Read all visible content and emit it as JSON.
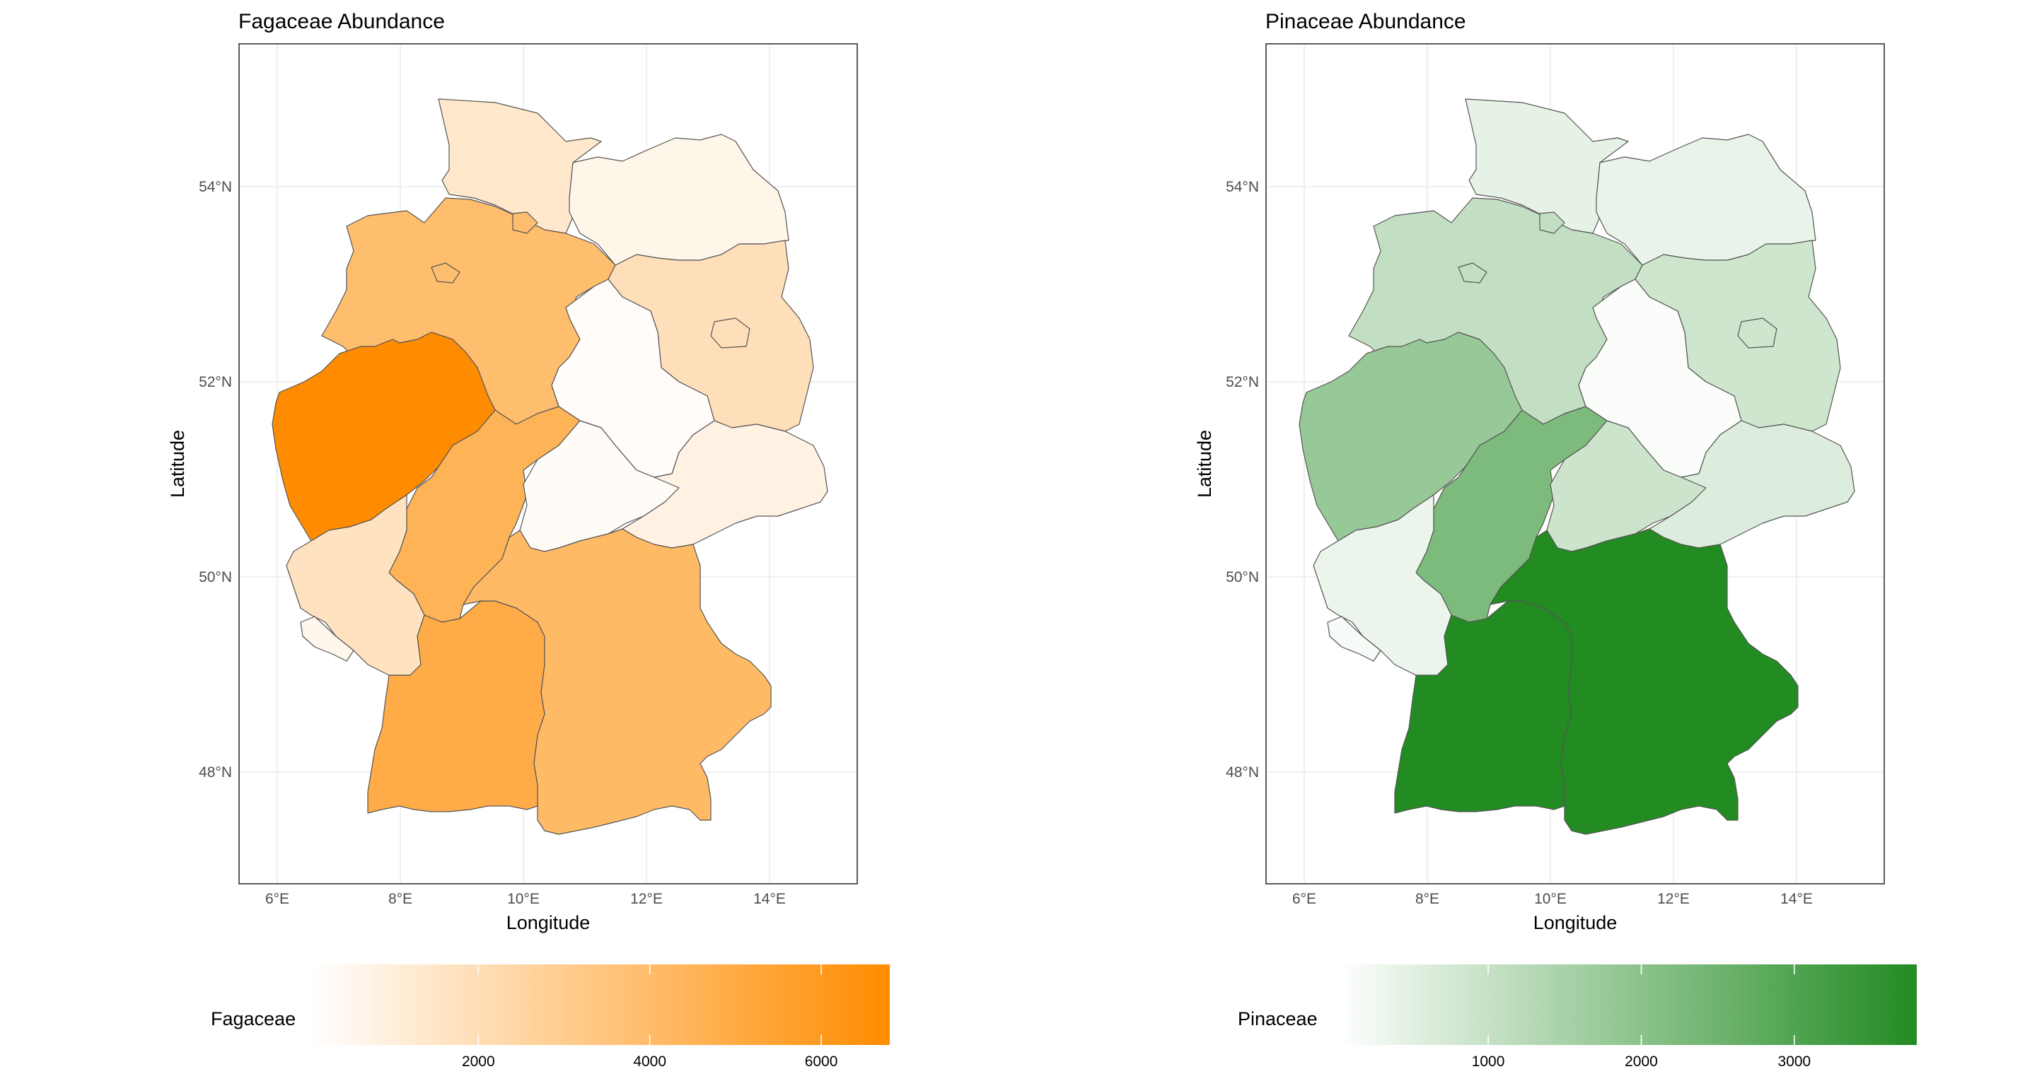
{
  "panels": [
    {
      "id": "fagaceae",
      "title": "Fagaceae Abundance",
      "xlabel": "Longitude",
      "ylabel": "Latitude",
      "x_ticks": [
        "6°E",
        "8°E",
        "10°E",
        "12°E",
        "14°E"
      ],
      "y_ticks": [
        "48°N",
        "50°N",
        "52°N",
        "54°N"
      ],
      "legend": {
        "label": "Fagaceae",
        "low_color": "#ffffff",
        "high_color": "#ff8c00",
        "range": [
          50,
          6800
        ],
        "ticks": [
          2000,
          4000,
          6000
        ],
        "tick_labels": [
          "2000",
          "4000",
          "6000"
        ]
      },
      "regions": [
        {
          "name": "Schleswig-Holstein",
          "value": 1400
        },
        {
          "name": "Mecklenburg-Vorpommern",
          "value": 600
        },
        {
          "name": "Hamburg",
          "value": 3900
        },
        {
          "name": "Bremen",
          "value": 3900
        },
        {
          "name": "Niedersachsen",
          "value": 3900
        },
        {
          "name": "Berlin",
          "value": 1900
        },
        {
          "name": "Brandenburg",
          "value": 1900
        },
        {
          "name": "Sachsen-Anhalt",
          "value": 200
        },
        {
          "name": "Nordrhein-Westfalen",
          "value": 6800
        },
        {
          "name": "Hessen",
          "value": 4500
        },
        {
          "name": "Thüringen",
          "value": 250
        },
        {
          "name": "Sachsen",
          "value": 800
        },
        {
          "name": "Rheinland-Pfalz",
          "value": 1700
        },
        {
          "name": "Saarland",
          "value": 500
        },
        {
          "name": "Baden-Württemberg",
          "value": 4900
        },
        {
          "name": "Bayern",
          "value": 4100
        }
      ]
    },
    {
      "id": "pinaceae",
      "title": "Pinaceae Abundance",
      "xlabel": "Longitude",
      "ylabel": "Latitude",
      "x_ticks": [
        "6°E",
        "8°E",
        "10°E",
        "12°E",
        "14°E"
      ],
      "y_ticks": [
        "48°N",
        "50°N",
        "52°N",
        "54°N"
      ],
      "legend": {
        "label": "Pinaceae",
        "low_color": "#ffffff",
        "high_color": "#228b22",
        "range": [
          20,
          3800
        ],
        "ticks": [
          1000,
          2000,
          3000
        ],
        "tick_labels": [
          "1000",
          "2000",
          "3000"
        ]
      },
      "regions": [
        {
          "name": "Schleswig-Holstein",
          "value": 450
        },
        {
          "name": "Mecklenburg-Vorpommern",
          "value": 400
        },
        {
          "name": "Hamburg",
          "value": 1050
        },
        {
          "name": "Bremen",
          "value": 1050
        },
        {
          "name": "Niedersachsen",
          "value": 1050
        },
        {
          "name": "Berlin",
          "value": 850
        },
        {
          "name": "Brandenburg",
          "value": 850
        },
        {
          "name": "Sachsen-Anhalt",
          "value": 100
        },
        {
          "name": "Nordrhein-Westfalen",
          "value": 1800
        },
        {
          "name": "Hessen",
          "value": 2250
        },
        {
          "name": "Thüringen",
          "value": 900
        },
        {
          "name": "Sachsen",
          "value": 600
        },
        {
          "name": "Rheinland-Pfalz",
          "value": 350
        },
        {
          "name": "Saarland",
          "value": 150
        },
        {
          "name": "Baden-Württemberg",
          "value": 3800
        },
        {
          "name": "Bayern",
          "value": 3800
        }
      ]
    }
  ]
}
